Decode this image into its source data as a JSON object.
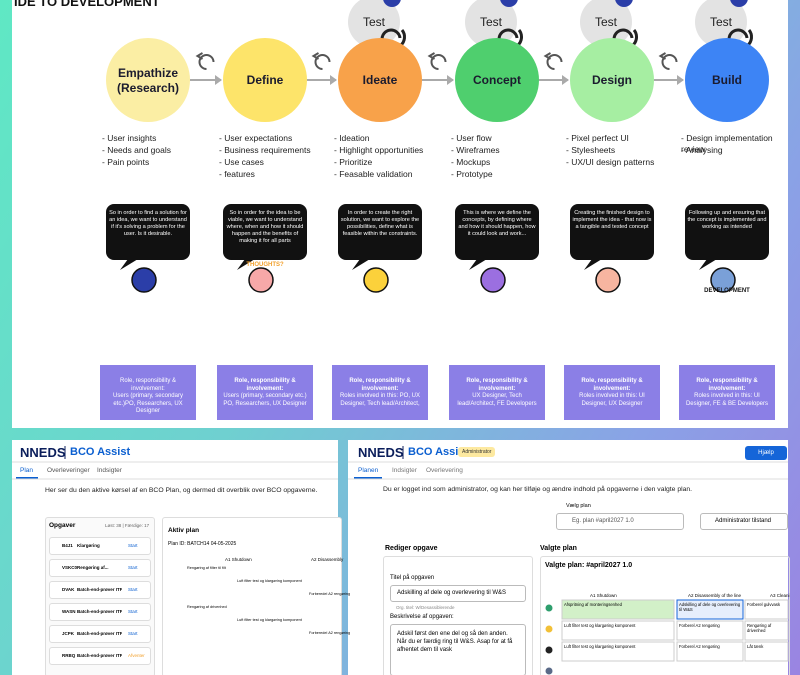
{
  "header": {
    "title": "Idé to development"
  },
  "stages": [
    {
      "name": "Empathize (Research)",
      "bullets": [
        "- User insights",
        "- Needs and goals",
        "- Pain points"
      ],
      "bubble": "So in order to find a solution for an idea, we want to understand if it's solving a problem for the user. Is it desirable.",
      "role_label": "Role, responsibility & involvement:",
      "role_text": "Users (primary, secondary etc.)PO, Researchers, UX Designer"
    },
    {
      "name": "Define",
      "bullets": [
        "- User expectations",
        "- Business requirements",
        "- Use cases",
        "- features"
      ],
      "bubble": "So in order for the idea to be viable, we want to understand where, when and how it should happen and the benefits of making it for all parts",
      "icon_label": "THOUGHTS?",
      "role_label": "Role, responsibility & involvement:",
      "role_text": "Users (primary, secondary etc.) PO, Researchers, UX Designer"
    },
    {
      "name": "Ideate",
      "test": "Test",
      "bullets": [
        "- Ideation",
        "- Highlight opportunities",
        "- Prioritize",
        "- Feasable validation"
      ],
      "bubble": "In order to create the right solution, we want to explore the possibilities, define what is feasible within the constraints.",
      "role_label": "Role, responsibility & involvement:",
      "role_text": "Roles involved in this: PO, UX Designer, Tech lead/Architect,"
    },
    {
      "name": "Concept",
      "test": "Test",
      "bullets": [
        "- User flow",
        "- Wireframes",
        "- Mockups",
        "- Prototype"
      ],
      "bubble": "This is where we define the concepts, by defining where and how it should happen, how it could look and work...",
      "role_label": "Role, responsibility & involvement:",
      "role_text": "UX Designer, Tech lead/Architect, FE Developers"
    },
    {
      "name": "Design",
      "test": "Test",
      "bullets": [
        "- Pixel perfect UI",
        "- Stylesheets",
        "- UX/UI design patterns"
      ],
      "bubble": "Creating the finished design to implement the idea - that now is a tangible and tested concept",
      "role_label": "Role, responsibility & involvement:",
      "role_text": "Roles involved in this: UI Designer, UX Designer"
    },
    {
      "name": "Build",
      "test": "Test",
      "bullets": [
        "- Design implementation review",
        "- Analysing"
      ],
      "bubble": "Following up and ensuring that the concept is implemented and working as intended",
      "icon_label": "DEVELOPMENT",
      "role_label": "Role, responsibility & involvement:",
      "role_text": "Roles involved in this: UI Designer, FE & BE Developers"
    }
  ],
  "left_app": {
    "logo": "NNEDS",
    "product": "BCO Assist",
    "tabs": [
      "Plan",
      "Overleveringer",
      "Indsigter"
    ],
    "intro": "Her ser du den aktive kørsel af en BCO Plan, og dermed dit overblik over BCO opgaverne.",
    "tasks_title": "Opgaver",
    "tasks_stats": "Løst: 38 | Færdige: 17",
    "tasks": [
      {
        "code": "B4J1",
        "name": "Klargøring",
        "action": "Start"
      },
      {
        "code": "VSKC0",
        "name": "Rengøring af...",
        "action": "Start"
      },
      {
        "code": "DVAK",
        "name": "Batch-end-prøver ITF...",
        "action": "Start"
      },
      {
        "code": "WASN",
        "name": "Batch-end-prøver ITF...",
        "action": "Start"
      },
      {
        "code": "JCPK",
        "name": "Batch-end-prøver ITF...",
        "action": "Start"
      },
      {
        "code": "RRBQ",
        "name": "Batch-end-prøver ITF...",
        "action": "Afventer"
      }
    ],
    "plan_title": "Aktiv plan",
    "plan_id": "Plan ID: BATCH14 04-05-2025",
    "columns": [
      "A1 Shutdown",
      "A2 Disassembly"
    ],
    "cells": [
      "Rengøring af filter til filt",
      "Luft filter test og klargøring komponent",
      "Forberedel A2 rengøring",
      "Rengøring af drivenhed",
      "Luft filter test og klargøring komponent",
      "Forberedel A2 rengøring"
    ]
  },
  "right_app": {
    "logo": "NNEDS",
    "product": "BCO Assist",
    "badge": "Administrator",
    "help": "Hjælp",
    "tabs": [
      "Planen",
      "Indsigter",
      "Overlevering"
    ],
    "intro": "Du er logget ind som administrator, og kan her tilføje og ændre indhold på opgaverne i den valgte plan.",
    "select_label": "Vælg plan",
    "select_value": "Eg. plan #april2027 1.0",
    "mode_button": "Administrator tilstand",
    "edit_title": "Rediger opgave",
    "chosen_title": "Valgte plan",
    "chosen_plan": "Valgte plan: #april2027 1.0",
    "field_title_label": "Titel på opgaven",
    "field_title_value": "Adskilling af dele og overlevering til W&S",
    "field_title_hint": "Org. titel: W/Desassiblerende",
    "field_desc_label": "Beskrivelse af opgaven:",
    "field_desc_value": "Adskil først den ene del og så den anden. Når du er færdig ring til W&S. Asap for at få afhentet dem til vask",
    "columns": [
      "A1 Shutdown",
      "A2 Disassembly of the line",
      "A3 Cleani"
    ],
    "cells": [
      "Afspritning af monteringsenhed",
      "Adskilling af dele og overlevering til W&S",
      "Forberel gulvvask",
      "Luft filter test og klargøring komponent",
      "Forberel A2 rengøring",
      "Rengøring af drivenhed",
      "Luft filter test og klargøring komponent",
      "Forberel A2 rengøring",
      "Låt tænk"
    ]
  }
}
